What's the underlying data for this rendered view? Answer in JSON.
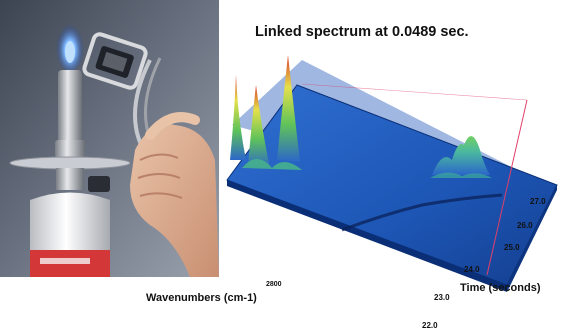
{
  "photo": {
    "subject": "hand holding sample holder over gas burner flame"
  },
  "plot": {
    "title": "Linked spectrum at 0.0489 sec.",
    "x_axis_label": "Wavenumbers (cm-1)",
    "x_tick": "2800",
    "time_axis_label": "Time (seconds)",
    "time_ticks": [
      "22.0",
      "23.0",
      "24.0",
      "25.0",
      "26.0",
      "27.0"
    ]
  },
  "colors": {
    "surface_base": "#1e58b8",
    "surface_edge": "#0b2f77",
    "peak_green": "#5fc35a",
    "peak_yellow": "#e6e04a",
    "peak_red": "#d8392e",
    "marker_line": "#e0406a"
  }
}
